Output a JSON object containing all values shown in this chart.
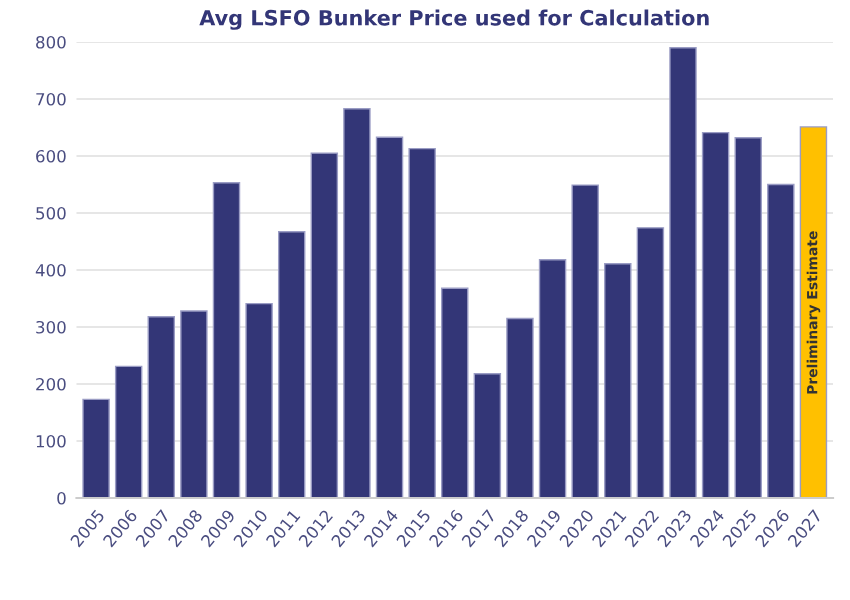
{
  "chart_data": {
    "type": "bar",
    "title": "Avg LSFO Bunker Price used for Calculation",
    "categories": [
      "2005",
      "2006",
      "2007",
      "2008",
      "2009",
      "2010",
      "2011",
      "2012",
      "2013",
      "2014",
      "2015",
      "2016",
      "2017",
      "2018",
      "2019",
      "2020",
      "2021",
      "2022",
      "2023",
      "2024",
      "2025",
      "2026",
      "2027"
    ],
    "values": [
      173,
      231,
      318,
      328,
      553,
      341,
      467,
      605,
      683,
      633,
      613,
      368,
      218,
      315,
      418,
      549,
      411,
      474,
      790,
      641,
      632,
      550,
      651
    ],
    "colors": [
      "#333677",
      "#333677",
      "#333677",
      "#333677",
      "#333677",
      "#333677",
      "#333677",
      "#333677",
      "#333677",
      "#333677",
      "#333677",
      "#333677",
      "#333677",
      "#333677",
      "#333677",
      "#333677",
      "#333677",
      "#333677",
      "#333677",
      "#333677",
      "#333677",
      "#333677",
      "#ffc000"
    ],
    "ylim": [
      0,
      800
    ],
    "yticks": [
      0,
      100,
      200,
      300,
      400,
      500,
      600,
      700,
      800
    ],
    "grid": "y",
    "annotations": [
      {
        "text": "Preliminary Estimate",
        "x": "2027",
        "y": 325
      }
    ]
  }
}
